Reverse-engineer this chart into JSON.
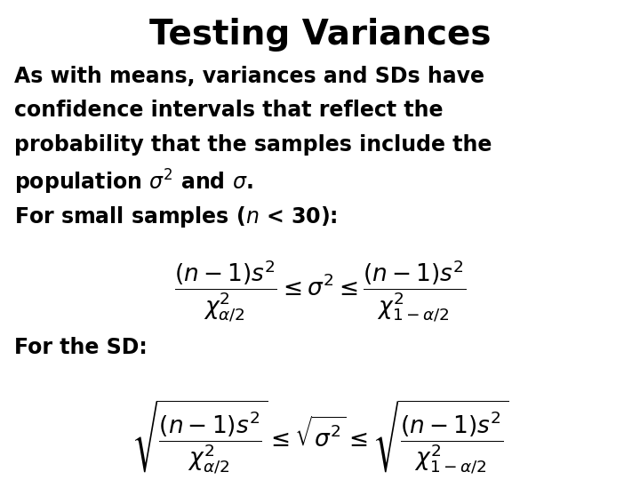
{
  "title": "Testing Variances",
  "bg_color": "#ffffff",
  "text_color": "#000000",
  "title_fontsize": 28,
  "body_fontsize": 17,
  "formula_fontsize": 16,
  "paragraph1": "As with means, variances and SDs have\nconfidence intervals that reflect the\nprobability that the samples include the\npopulation $\\sigma^2$ and $\\sigma$.",
  "paragraph2": "For small samples ($n$ < 30):",
  "formula_variance": "$\\dfrac{(n-1)s^2}{\\chi^2_{\\alpha/2}} \\leq \\sigma^2 \\leq \\dfrac{(n-1)s^2}{\\chi^2_{1-\\alpha/2}}$",
  "paragraph3": "For the SD:",
  "formula_sd": "$\\sqrt{\\dfrac{(n-1)s^2}{\\chi^2_{\\alpha/2}}} \\leq \\sqrt{\\sigma^2} \\leq \\sqrt{\\dfrac{(n-1)s^2}{\\chi^2_{1-\\alpha/2}}}$"
}
